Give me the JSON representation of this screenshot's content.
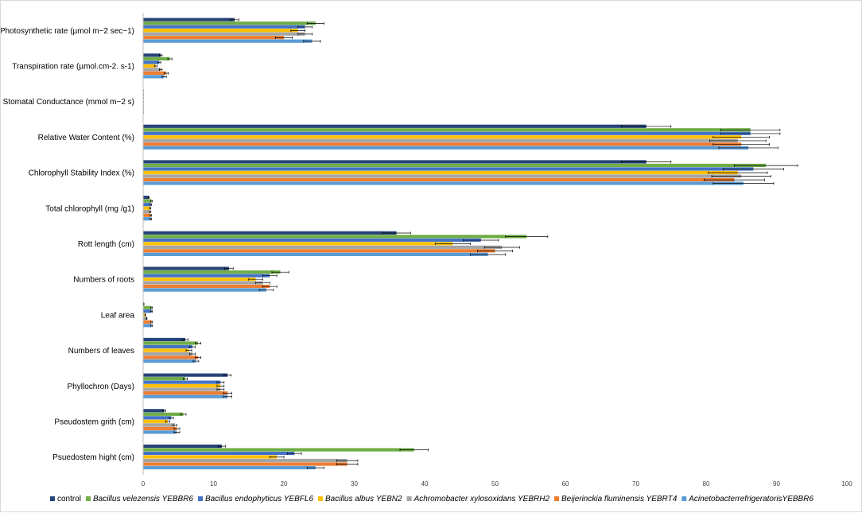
{
  "chart_data": {
    "type": "bar",
    "orientation": "horizontal",
    "title": "",
    "xlabel": "",
    "ylabel": "",
    "xlim": [
      0,
      100
    ],
    "xticks": [
      0,
      10,
      20,
      30,
      40,
      50,
      60,
      70,
      80,
      90,
      100
    ],
    "grid": false,
    "legend_position": "bottom",
    "categories": [
      "Photosynthetic rate (µmol m−2 sec−1)",
      "Transpiration rate (µmol.cm-2. s-1)",
      "Stomatal Conductance (mmol m−2 s)",
      "Relative Water Content (%)",
      "Chlorophyll Stability Index (%)",
      "Total chlorophyll (mg /g1)",
      "Rott length (cm)",
      "Numbers of roots",
      "Leaf area",
      "Numbers of leaves",
      "Phyllochron (Days)",
      "Pseudostem grith (cm)",
      "Psuedostem hight (cm)"
    ],
    "series": [
      {
        "name": "control",
        "italic": false,
        "color": "#264478",
        "values": [
          13.0,
          2.5,
          0.03,
          71.5,
          71.5,
          0.8,
          36.0,
          12.2,
          0.1,
          6.0,
          12.0,
          3.0,
          11.2
        ],
        "errors": [
          0.6,
          0.2,
          0.005,
          3.5,
          3.5,
          0.08,
          2.0,
          0.6,
          0.02,
          0.4,
          0.5,
          0.2,
          0.5
        ]
      },
      {
        "name": "Bacillus velezensis YEBBR6",
        "italic": true,
        "color": "#70AD47",
        "values": [
          24.5,
          3.8,
          0.03,
          86.3,
          88.5,
          1.2,
          54.5,
          19.5,
          1.2,
          7.8,
          6.0,
          5.7,
          38.5
        ],
        "errors": [
          1.2,
          0.3,
          0.005,
          4.2,
          4.5,
          0.1,
          3.0,
          1.2,
          0.1,
          0.4,
          0.3,
          0.4,
          2.0
        ]
      },
      {
        "name": "Bacillus endophyticus YEBFL6",
        "italic": true,
        "color": "#4472C4",
        "values": [
          23.0,
          2.3,
          0.03,
          86.3,
          86.7,
          1.1,
          48.0,
          18.0,
          1.2,
          7.0,
          11.0,
          4.0,
          21.5
        ],
        "errors": [
          1.0,
          0.2,
          0.005,
          4.2,
          4.3,
          0.1,
          2.5,
          1.0,
          0.1,
          0.4,
          0.5,
          0.3,
          1.0
        ]
      },
      {
        "name": "Bacillus albus YEBN2",
        "italic": true,
        "color": "#FFC000",
        "values": [
          22.0,
          1.8,
          0.03,
          85.0,
          84.5,
          1.0,
          44.0,
          16.0,
          0.3,
          6.5,
          11.0,
          3.5,
          19.0
        ],
        "errors": [
          1.0,
          0.2,
          0.005,
          4.0,
          4.2,
          0.1,
          2.5,
          1.0,
          0.05,
          0.4,
          0.5,
          0.3,
          1.0
        ]
      },
      {
        "name": "Achromobacter xylosoxidans YEBRH2",
        "italic": true,
        "color": "#A5A5A5",
        "values": [
          23.0,
          2.5,
          0.03,
          84.5,
          85.0,
          1.0,
          51.0,
          17.0,
          0.5,
          7.0,
          11.0,
          4.5,
          29.0
        ],
        "errors": [
          1.0,
          0.2,
          0.005,
          4.0,
          4.2,
          0.1,
          2.5,
          1.0,
          0.05,
          0.4,
          0.5,
          0.3,
          1.5
        ]
      },
      {
        "name": "Beijerinckia fluminensis YEBRT4",
        "italic": true,
        "color": "#ED7D31",
        "values": [
          20.0,
          3.3,
          0.03,
          85.0,
          84.0,
          1.1,
          50.0,
          18.0,
          1.2,
          7.8,
          12.0,
          4.8,
          29.0
        ],
        "errors": [
          1.2,
          0.3,
          0.005,
          4.0,
          4.3,
          0.1,
          2.5,
          1.0,
          0.1,
          0.4,
          0.6,
          0.4,
          1.5
        ]
      },
      {
        "name": "AcinetobacterrefrigeratorisYEBBR6",
        "italic": true,
        "color": "#5B9BD5",
        "values": [
          24.0,
          3.0,
          0.03,
          86.0,
          85.3,
          1.1,
          49.0,
          17.5,
          1.2,
          7.5,
          12.0,
          4.8,
          24.5
        ],
        "errors": [
          1.2,
          0.3,
          0.005,
          4.2,
          4.3,
          0.1,
          2.5,
          1.0,
          0.1,
          0.4,
          0.6,
          0.4,
          1.2
        ]
      }
    ]
  }
}
